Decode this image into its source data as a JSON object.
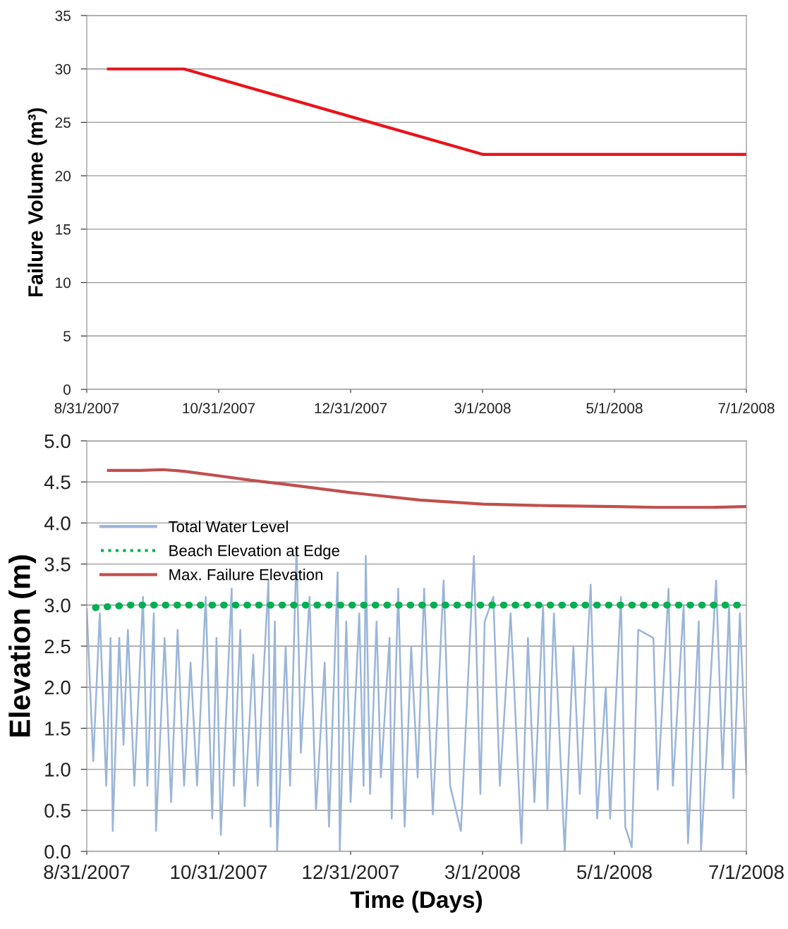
{
  "chart_data": [
    {
      "type": "line",
      "ylabel": "Failure Volume (m³)",
      "grid": "y",
      "legend": false,
      "xlim": [
        "2007-08-31",
        "2008-07-01"
      ],
      "xticks": [
        {
          "value": "2007-08-31",
          "label": "8/31/2007"
        },
        {
          "value": "2007-10-31",
          "label": "10/31/2007"
        },
        {
          "value": "2007-12-31",
          "label": "12/31/2007"
        },
        {
          "value": "2008-03-01",
          "label": "3/1/2008"
        },
        {
          "value": "2008-05-01",
          "label": "5/1/2008"
        },
        {
          "value": "2008-07-01",
          "label": "7/1/2008"
        }
      ],
      "ylim": [
        0,
        35
      ],
      "yticks": [
        0,
        5,
        10,
        15,
        20,
        25,
        30,
        35
      ],
      "series": [
        {
          "color": "#e8141c",
          "x": [
            "2007-09-10",
            "2007-10-15",
            "2008-03-01",
            "2008-07-01"
          ],
          "values": [
            30,
            30,
            22,
            22
          ]
        }
      ]
    },
    {
      "type": "line",
      "ylabel": "Elevation (m)",
      "xlabel": "Time (Days)",
      "grid": "y",
      "legend": "top left",
      "xlim": [
        "2007-08-31",
        "2008-07-01"
      ],
      "xticks": [
        {
          "value": "2007-08-31",
          "label": "8/31/2007"
        },
        {
          "value": "2007-10-31",
          "label": "10/31/2007"
        },
        {
          "value": "2007-12-31",
          "label": "12/31/2007"
        },
        {
          "value": "2008-03-01",
          "label": "3/1/2008"
        },
        {
          "value": "2008-05-01",
          "label": "5/1/2008"
        },
        {
          "value": "2008-07-01",
          "label": "7/1/2008"
        }
      ],
      "ylim": [
        0,
        5
      ],
      "yticks": [
        {
          "value": 0,
          "label": "0.0"
        },
        {
          "value": 0.5,
          "label": "0.5"
        },
        {
          "value": 1,
          "label": "1.0"
        },
        {
          "value": 1.5,
          "label": "1.5"
        },
        {
          "value": 2,
          "label": "2.0"
        },
        {
          "value": 2.5,
          "label": "2.5"
        },
        {
          "value": 3,
          "label": "3.0"
        },
        {
          "value": 3.5,
          "label": "3.5"
        },
        {
          "value": 4,
          "label": "4.0"
        },
        {
          "value": 4.5,
          "label": "4.5"
        },
        {
          "value": 5,
          "label": "5.0"
        }
      ],
      "series": [
        {
          "name": "Total Water Level",
          "color": "#9ab5d9",
          "line_style": "solid",
          "x": [
            "2007-08-31",
            "2007-09-03",
            "2007-09-06",
            "2007-09-09",
            "2007-09-11",
            "2007-09-12",
            "2007-09-15",
            "2007-09-17",
            "2007-09-19",
            "2007-09-22",
            "2007-09-26",
            "2007-09-28",
            "2007-10-01",
            "2007-10-02",
            "2007-10-06",
            "2007-10-09",
            "2007-10-12",
            "2007-10-15",
            "2007-10-18",
            "2007-10-21",
            "2007-10-25",
            "2007-10-28",
            "2007-10-30",
            "2007-11-01",
            "2007-11-06",
            "2007-11-07",
            "2007-11-10",
            "2007-11-12",
            "2007-11-16",
            "2007-11-18",
            "2007-11-23",
            "2007-11-24",
            "2007-11-26",
            "2007-11-27",
            "2007-12-01",
            "2007-12-03",
            "2007-12-06",
            "2007-12-08",
            "2007-12-12",
            "2007-12-15",
            "2007-12-19",
            "2007-12-21",
            "2007-12-25",
            "2007-12-26",
            "2007-12-29",
            "2007-12-31",
            "2008-01-04",
            "2008-01-06",
            "2008-01-07",
            "2008-01-09",
            "2008-01-12",
            "2008-01-14",
            "2008-01-18",
            "2008-01-19",
            "2008-01-22",
            "2008-01-25",
            "2008-01-28",
            "2008-01-31",
            "2008-02-03",
            "2008-02-07",
            "2008-02-12",
            "2008-02-15",
            "2008-02-20",
            "2008-02-26",
            "2008-02-29",
            "2008-03-02",
            "2008-03-06",
            "2008-03-09",
            "2008-03-14",
            "2008-03-19",
            "2008-03-22",
            "2008-03-25",
            "2008-03-29",
            "2008-03-31",
            "2008-04-03",
            "2008-04-08",
            "2008-04-12",
            "2008-04-15",
            "2008-04-20",
            "2008-04-23",
            "2008-04-27",
            "2008-04-29",
            "2008-05-04",
            "2008-05-06",
            "2008-05-09",
            "2008-05-12",
            "2008-05-19",
            "2008-05-21",
            "2008-05-26",
            "2008-05-28",
            "2008-06-02",
            "2008-06-04",
            "2008-06-09",
            "2008-06-10",
            "2008-06-17",
            "2008-06-20",
            "2008-06-23",
            "2008-06-25",
            "2008-06-28",
            "2008-07-01"
          ],
          "values": [
            2.95,
            1.1,
            2.9,
            0.8,
            2.6,
            0.25,
            2.6,
            1.3,
            2.7,
            0.8,
            3.1,
            0.8,
            2.9,
            0.25,
            2.6,
            0.6,
            2.7,
            0.8,
            2.3,
            0.8,
            3.1,
            0.4,
            2.6,
            0.2,
            3.2,
            0.8,
            2.7,
            0.55,
            2.4,
            0.8,
            3.3,
            0.3,
            2.8,
            0.0,
            2.5,
            0.8,
            3.7,
            1.2,
            3.1,
            0.5,
            2.3,
            0.3,
            3.4,
            0.0,
            2.8,
            0.6,
            2.9,
            0.8,
            3.6,
            0.7,
            2.8,
            0.9,
            2.6,
            0.4,
            3.2,
            0.3,
            2.5,
            0.9,
            3.2,
            0.45,
            3.3,
            0.8,
            0.25,
            3.6,
            0.7,
            2.8,
            3.1,
            0.8,
            2.9,
            0.1,
            2.6,
            0.6,
            3.0,
            0.5,
            2.9,
            0.0,
            2.5,
            0.7,
            3.25,
            0.4,
            2.0,
            0.4,
            3.1,
            0.3,
            0.05,
            2.7,
            2.6,
            0.75,
            3.2,
            0.8,
            3.0,
            0.1,
            2.8,
            0.0,
            3.3,
            1.0,
            3.0,
            0.65,
            2.9,
            0.95
          ]
        },
        {
          "name": "Beach Elevation at Edge",
          "color": "#00b050",
          "line_style": "dotted",
          "x": [
            "2007-09-04",
            "2007-09-20",
            "2008-07-01"
          ],
          "values": [
            2.97,
            3.0,
            3.0
          ]
        },
        {
          "name": "Max. Failure Elevation",
          "color": "#c0504d",
          "line_style": "solid",
          "x": [
            "2007-09-10",
            "2007-09-25",
            "2007-10-05",
            "2007-10-15",
            "2007-11-01",
            "2007-11-15",
            "2007-12-01",
            "2007-12-31",
            "2008-02-01",
            "2008-03-01",
            "2008-04-01",
            "2008-05-01",
            "2008-05-20",
            "2008-06-15",
            "2008-07-01"
          ],
          "values": [
            4.64,
            4.64,
            4.65,
            4.63,
            4.57,
            4.52,
            4.47,
            4.37,
            4.28,
            4.23,
            4.21,
            4.2,
            4.19,
            4.19,
            4.2
          ]
        }
      ]
    }
  ]
}
